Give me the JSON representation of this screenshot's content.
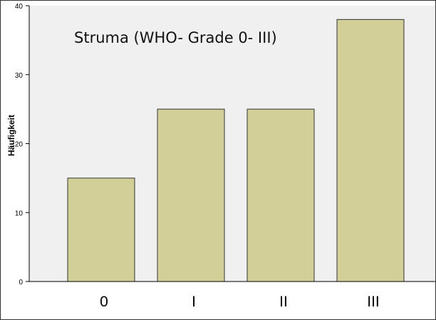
{
  "chart_data": {
    "type": "bar",
    "title": "Struma (WHO- Grade 0- III)",
    "xlabel": "",
    "ylabel": "Häufigkeit",
    "categories": [
      "0",
      "I",
      "II",
      "III"
    ],
    "values": [
      15,
      25,
      25,
      38
    ],
    "ylim": [
      0,
      40
    ],
    "yticks": [
      "0",
      "10",
      "20",
      "30",
      "40"
    ],
    "grid": false,
    "legend": "none",
    "colors": {
      "plot_background": "#f0f0f0",
      "bar_fill": "#d3cf98",
      "bar_stroke": "#333333"
    }
  }
}
